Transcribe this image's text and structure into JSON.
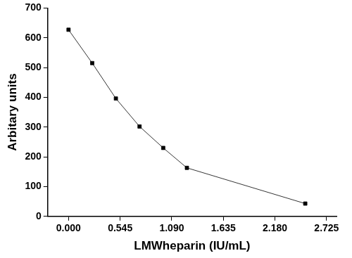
{
  "chart_data": {
    "type": "line",
    "x_label": "LMWheparin (IU/mL)",
    "y_label": "Arbitary units",
    "x": [
      0,
      0.25,
      0.5,
      0.75,
      1.0,
      1.25,
      2.5
    ],
    "values": [
      627,
      515,
      396,
      302,
      230,
      163,
      43
    ],
    "color": "#000000",
    "marker": "square",
    "xlim": [
      -0.22,
      2.83
    ],
    "xticks": [
      {
        "value": 0,
        "label": "0.000"
      },
      0.545,
      {
        "value": 1.09,
        "label": "1.090"
      },
      1.635,
      {
        "value": 2.18,
        "label": "2.180"
      },
      2.725
    ],
    "ylim": [
      0,
      700
    ],
    "yticks": [
      0,
      100,
      200,
      300,
      400,
      500,
      600,
      700
    ],
    "grid": false
  }
}
